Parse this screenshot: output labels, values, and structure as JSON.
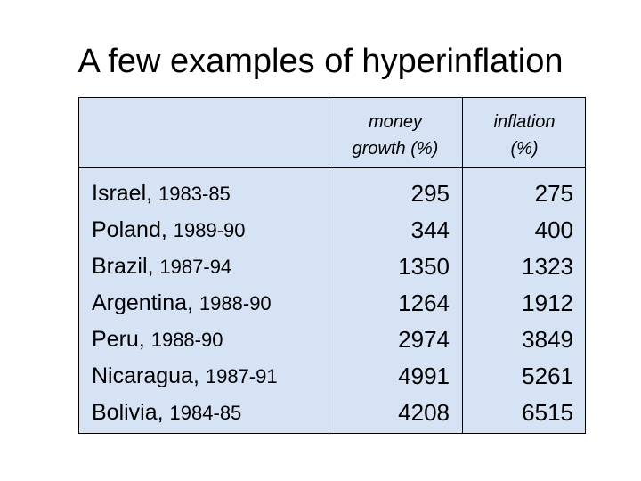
{
  "title": "A few examples of hyperinflation",
  "table": {
    "headers": {
      "money_line1": "money",
      "money_line2": "growth (%)",
      "inflation_line1": "inflation",
      "inflation_line2": "(%)"
    },
    "rows": [
      {
        "country": "Israel,",
        "years": "1983-85",
        "money_growth": "295",
        "inflation": "275"
      },
      {
        "country": "Poland,",
        "years": "1989-90",
        "money_growth": "344",
        "inflation": "400"
      },
      {
        "country": "Brazil,",
        "years": "1987-94",
        "money_growth": "1350",
        "inflation": "1323"
      },
      {
        "country": "Argentina,",
        "years": "1988-90",
        "money_growth": "1264",
        "inflation": "1912"
      },
      {
        "country": "Peru,",
        "years": "1988-90",
        "money_growth": "2974",
        "inflation": "3849"
      },
      {
        "country": "Nicaragua,",
        "years": "1987-91",
        "money_growth": "4991",
        "inflation": "5261"
      },
      {
        "country": "Bolivia,",
        "years": "1984-85",
        "money_growth": "4208",
        "inflation": "6515"
      }
    ]
  },
  "colors": {
    "table_background": "#d6e3f5",
    "border": "#000000",
    "text": "#000000"
  }
}
